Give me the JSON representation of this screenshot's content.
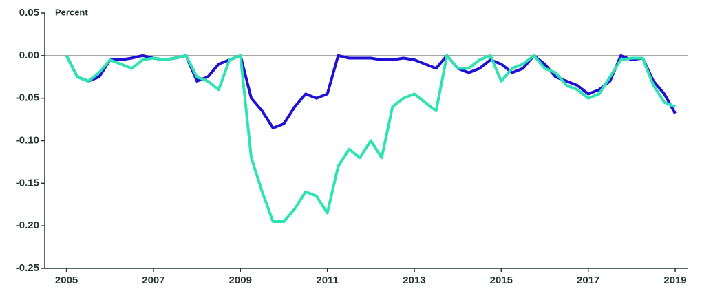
{
  "chart_data": {
    "type": "line",
    "y_label": "Percent",
    "x": [
      2005,
      2005.25,
      2005.5,
      2005.75,
      2006,
      2006.25,
      2006.5,
      2006.75,
      2007,
      2007.25,
      2007.5,
      2007.75,
      2008,
      2008.25,
      2008.5,
      2008.75,
      2009,
      2009.25,
      2009.5,
      2009.75,
      2010,
      2010.25,
      2010.5,
      2010.75,
      2011,
      2011.25,
      2011.5,
      2011.75,
      2012,
      2012.25,
      2012.5,
      2012.75,
      2013,
      2013.25,
      2013.5,
      2013.75,
      2014,
      2014.25,
      2014.5,
      2014.75,
      2015,
      2015.25,
      2015.5,
      2015.75,
      2016,
      2016.25,
      2016.5,
      2016.75,
      2017,
      2017.25,
      2017.5,
      2017.75,
      2018,
      2018.25,
      2018.5,
      2018.75,
      2019
    ],
    "series": [
      {
        "color": "#1f10d4",
        "values": [
          0,
          -0.025,
          -0.03,
          -0.025,
          -0.005,
          -0.005,
          -0.003,
          0,
          -0.003,
          -0.005,
          -0.003,
          0,
          -0.03,
          -0.025,
          -0.01,
          -0.005,
          0,
          -0.05,
          -0.065,
          -0.085,
          -0.08,
          -0.06,
          -0.045,
          -0.05,
          -0.045,
          0,
          -0.003,
          -0.003,
          -0.003,
          -0.005,
          -0.005,
          -0.003,
          -0.005,
          -0.01,
          -0.015,
          0,
          -0.015,
          -0.02,
          -0.015,
          -0.005,
          -0.01,
          -0.02,
          -0.015,
          0,
          -0.01,
          -0.025,
          -0.03,
          -0.035,
          -0.045,
          -0.04,
          -0.03,
          0,
          -0.005,
          -0.003,
          -0.03,
          -0.045,
          -0.068
        ]
      },
      {
        "color": "#2ee3b2",
        "values": [
          0,
          -0.025,
          -0.03,
          -0.02,
          -0.005,
          -0.01,
          -0.015,
          -0.005,
          -0.003,
          -0.005,
          -0.003,
          0,
          -0.025,
          -0.03,
          -0.04,
          -0.005,
          0,
          -0.12,
          -0.16,
          -0.195,
          -0.195,
          -0.18,
          -0.16,
          -0.165,
          -0.185,
          -0.13,
          -0.11,
          -0.12,
          -0.1,
          -0.12,
          -0.06,
          -0.05,
          -0.045,
          -0.055,
          -0.065,
          0,
          -0.015,
          -0.015,
          -0.005,
          0,
          -0.03,
          -0.015,
          -0.01,
          0,
          -0.015,
          -0.02,
          -0.035,
          -0.04,
          -0.05,
          -0.045,
          -0.025,
          -0.005,
          -0.003,
          -0.003,
          -0.035,
          -0.055,
          -0.06
        ]
      }
    ],
    "xlim": [
      2004.5,
      2019.3
    ],
    "xticks": [
      2005,
      2007,
      2009,
      2011,
      2013,
      2015,
      2017,
      2019
    ],
    "ylim": [
      -0.25,
      0.05
    ],
    "yticks": [
      {
        "value": 0.05,
        "label": "0.05"
      },
      {
        "value": 0,
        "label": "0.00"
      },
      {
        "value": -0.05,
        "label": "-0.05"
      },
      {
        "value": -0.1,
        "label": "-0.10"
      },
      {
        "value": -0.15,
        "label": "-0.15"
      },
      {
        "value": -0.2,
        "label": "-0.20"
      },
      {
        "value": -0.25,
        "label": "-0.25"
      }
    ]
  }
}
